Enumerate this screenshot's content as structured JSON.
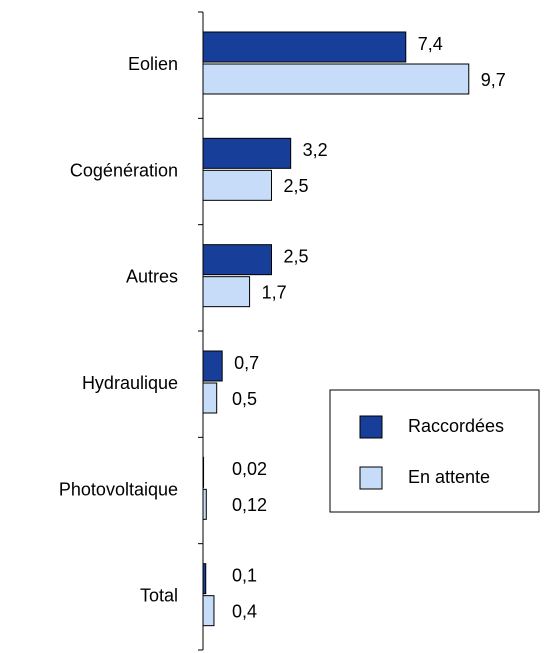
{
  "chart_data": {
    "type": "barh",
    "categories": [
      "Eolien",
      "Cogénération",
      "Autres",
      "Hydraulique",
      "Photovoltaique",
      "Total"
    ],
    "series": [
      {
        "name": "Raccordées",
        "color": "#173f9a",
        "values": [
          7.4,
          3.2,
          2.5,
          0.7,
          0.02,
          0.1
        ],
        "value_labels": [
          "7,4",
          "3,2",
          "2,5",
          "0,7",
          "0,02",
          "0,1"
        ]
      },
      {
        "name": "En attente",
        "color": "#c6dcf8",
        "values": [
          9.7,
          2.5,
          1.7,
          0.5,
          0.12,
          0.4
        ],
        "value_labels": [
          "9,7",
          "2,5",
          "1,7",
          "0,5",
          "0,12",
          "0,4"
        ]
      }
    ]
  }
}
